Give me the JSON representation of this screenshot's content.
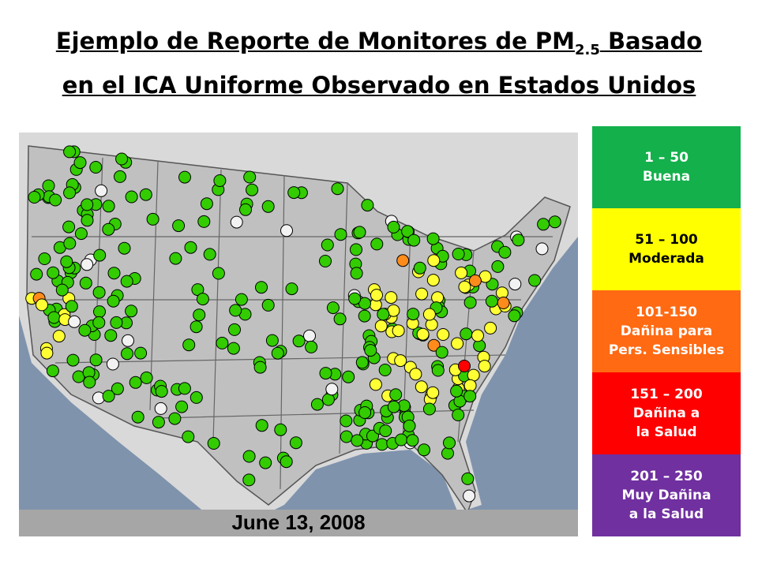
{
  "title": {
    "line1_before": "Ejemplo de Reporte de Monitores de PM",
    "subscript": "2.5",
    "line1_after": " Basado",
    "line2": "en el ICA Uniforme Observado en Estados Unidos"
  },
  "map": {
    "date": "June 13, 2008"
  },
  "legend": [
    {
      "lines": [
        "1 – 50",
        "Buena"
      ],
      "color": "#14b04c"
    },
    {
      "lines": [
        "51 – 100",
        "Moderada"
      ],
      "color": "#ffff00"
    },
    {
      "lines": [
        "101-150",
        "Dañina para",
        "Pers. Sensibles"
      ],
      "color": "#ff6a13"
    },
    {
      "lines": [
        "151 – 200",
        "Dañina a",
        "la Salud"
      ],
      "color": "#ff0000"
    },
    {
      "lines": [
        "201 – 250",
        "Muy Dañina",
        "a la Salud"
      ],
      "color": "#7030a0"
    }
  ]
}
